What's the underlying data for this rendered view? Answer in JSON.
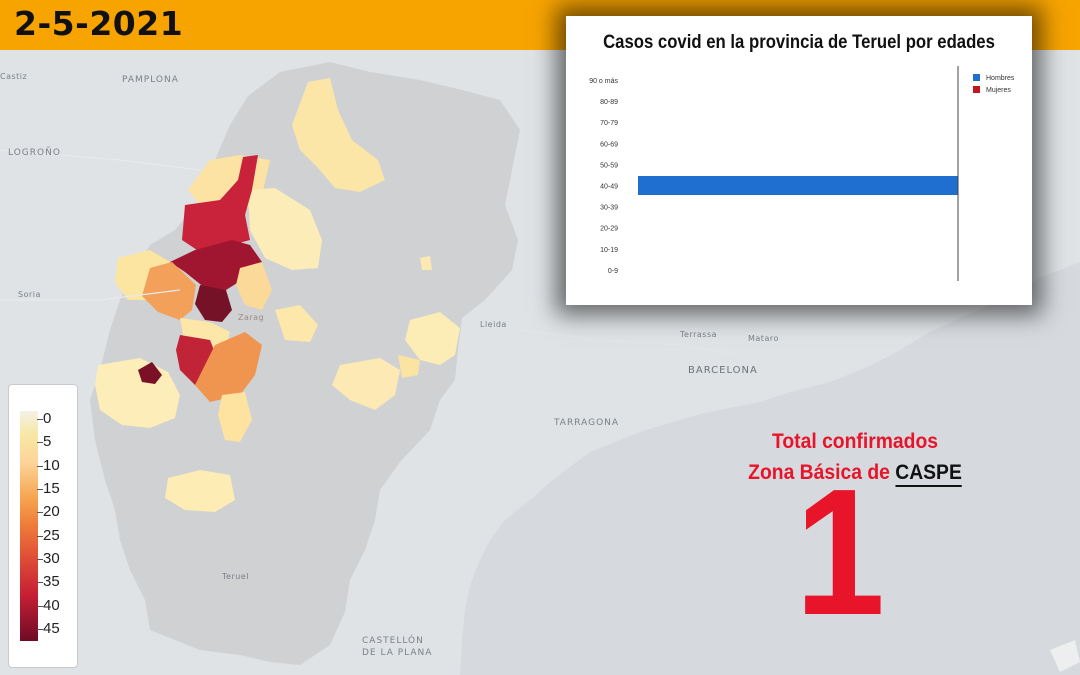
{
  "header": {
    "date": "2-5-2021"
  },
  "map_labels": {
    "pamplona": "PAMPLONA",
    "logrono": "LOGROÑO",
    "soria": "Soria",
    "lleida": "Lleida",
    "terrassa": "Terrassa",
    "mataro": "Mataro",
    "barcelona": "BARCELONA",
    "tarragona": "TARRAGONA",
    "castellon_1": "CASTELLÓN",
    "castellon_2": "DE LA PLANA",
    "teruel": "Teruel",
    "zaragoza": "Zarag",
    "castiz": "Castiz"
  },
  "legend": {
    "ticks": [
      "0",
      "5",
      "10",
      "15",
      "20",
      "25",
      "30",
      "35",
      "40",
      "45"
    ]
  },
  "chart_data": {
    "type": "bar",
    "orientation": "horizontal",
    "title": "Casos covid en la provincia de Teruel por edades",
    "categories": [
      "90 o más",
      "80-89",
      "70-79",
      "60-69",
      "50-59",
      "40-49",
      "30-39",
      "20-29",
      "10-19",
      "0-9"
    ],
    "series": [
      {
        "name": "Hombres",
        "color": "#1f6fd1",
        "values": [
          0,
          0,
          0,
          0,
          0,
          1,
          0,
          0,
          0,
          0
        ]
      },
      {
        "name": "Mujeres",
        "color": "#c0181f",
        "values": [
          0,
          0,
          0,
          0,
          0,
          0,
          0,
          0,
          0,
          0
        ]
      }
    ],
    "xlim": [
      0,
      1
    ],
    "legend_position": "top-right",
    "grid": false
  },
  "total": {
    "line1": "Total confirmados",
    "line2_prefix": "Zona Básica de ",
    "zone": "CASPE",
    "value": "1"
  },
  "colors": {
    "header": "#f7a400",
    "accent": "#e8142a"
  }
}
